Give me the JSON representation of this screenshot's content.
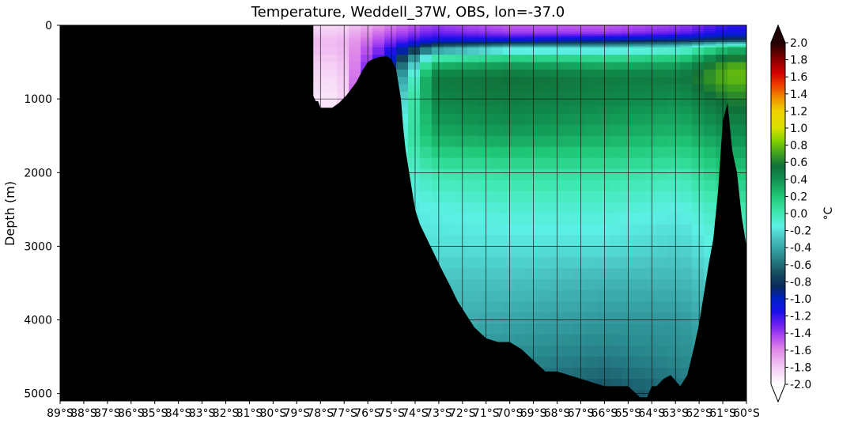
{
  "chart_data": {
    "type": "heatmap",
    "title": "Temperature, Weddell_37W, OBS, lon=-37.0",
    "xlabel": "",
    "ylabel": "Depth (m)",
    "x_range": [
      -89,
      -60
    ],
    "y_range": [
      0,
      5100
    ],
    "y_inverted": true,
    "x_ticks": [
      -89,
      -88,
      -87,
      -86,
      -85,
      -84,
      -83,
      -82,
      -81,
      -80,
      -79,
      -78,
      -77,
      -76,
      -75,
      -74,
      -73,
      -72,
      -71,
      -70,
      -69,
      -68,
      -67,
      -66,
      -65,
      -64,
      -63,
      -62,
      -61,
      -60
    ],
    "x_tick_labels": [
      "89°S",
      "88°S",
      "87°S",
      "86°S",
      "85°S",
      "84°S",
      "83°S",
      "82°S",
      "81°S",
      "80°S",
      "79°S",
      "78°S",
      "77°S",
      "76°S",
      "75°S",
      "74°S",
      "73°S",
      "72°S",
      "71°S",
      "70°S",
      "69°S",
      "68°S",
      "67°S",
      "66°S",
      "65°S",
      "64°S",
      "63°S",
      "62°S",
      "61°S",
      "60°S"
    ],
    "y_ticks": [
      0,
      1000,
      2000,
      3000,
      4000,
      5000
    ],
    "y_tick_labels": [
      "0",
      "1000",
      "2000",
      "3000",
      "4000",
      "5000"
    ],
    "grid": true,
    "colorbar": {
      "label": "°C",
      "vmin": -2.0,
      "vmax": 2.0,
      "extend": "both",
      "ticks": [
        2.0,
        1.8,
        1.6,
        1.4,
        1.2,
        1.0,
        0.8,
        0.6,
        0.4,
        0.2,
        0.0,
        -0.2,
        -0.4,
        -0.6,
        -0.8,
        -1.0,
        -1.2,
        -1.4,
        -1.6,
        -1.8,
        -2.0
      ],
      "tick_labels": [
        "2.0",
        "1.8",
        "1.6",
        "1.4",
        "1.2",
        "1.0",
        "0.8",
        "0.6",
        "0.4",
        "0.2",
        "0.0",
        "-0.2",
        "-0.4",
        "-0.6",
        "-0.8",
        "-1.0",
        "-1.2",
        "-1.4",
        "-1.6",
        "-1.8",
        "-2.0"
      ],
      "colors": [
        {
          "v": -2.0,
          "c": "#ffffff"
        },
        {
          "v": -1.8,
          "c": "#f4ccf4"
        },
        {
          "v": -1.6,
          "c": "#e08ae8"
        },
        {
          "v": -1.45,
          "c": "#b54cf0"
        },
        {
          "v": -1.3,
          "c": "#6a1ff0"
        },
        {
          "v": -1.15,
          "c": "#1a10e8"
        },
        {
          "v": -1.0,
          "c": "#0020c8"
        },
        {
          "v": -0.85,
          "c": "#0a2a5a"
        },
        {
          "v": -0.7,
          "c": "#154d60"
        },
        {
          "v": -0.5,
          "c": "#2a8c90"
        },
        {
          "v": -0.3,
          "c": "#48c0c0"
        },
        {
          "v": -0.15,
          "c": "#5cf0e4"
        },
        {
          "v": 0.0,
          "c": "#40e8b0"
        },
        {
          "v": 0.2,
          "c": "#20c878"
        },
        {
          "v": 0.4,
          "c": "#109050"
        },
        {
          "v": 0.55,
          "c": "#10703a"
        },
        {
          "v": 0.7,
          "c": "#40a020"
        },
        {
          "v": 0.85,
          "c": "#80d000"
        },
        {
          "v": 1.0,
          "c": "#d8e000"
        },
        {
          "v": 1.2,
          "c": "#f0d000"
        },
        {
          "v": 1.35,
          "c": "#f09000"
        },
        {
          "v": 1.5,
          "c": "#f04000"
        },
        {
          "v": 1.65,
          "c": "#d00000"
        },
        {
          "v": 1.8,
          "c": "#8a0000"
        },
        {
          "v": 2.0,
          "c": "#200000"
        }
      ]
    },
    "bathymetry": {
      "comment": "bottom depth (m) by latitude; shelf ice/land masked black",
      "lat": [
        -89,
        -78.3,
        -78.2,
        -78.1,
        -78.0,
        -77.9,
        -77.5,
        -77.2,
        -76.9,
        -76.5,
        -76.2,
        -76.0,
        -75.8,
        -75.5,
        -75.2,
        -75.0,
        -74.8,
        -74.6,
        -74.5,
        -74.4,
        -74.3,
        -74.2,
        -74.1,
        -74.0,
        -73.8,
        -73.5,
        -73.2,
        -72.9,
        -72.5,
        -72.2,
        -71.9,
        -71.5,
        -71.0,
        -70.5,
        -70.0,
        -69.5,
        -69.0,
        -68.5,
        -68.0,
        -67.0,
        -66.0,
        -65.0,
        -64.5,
        -64.2,
        -64.0,
        -63.8,
        -63.5,
        -63.2,
        -62.8,
        -62.5,
        -62.2,
        -62.0,
        -61.8,
        -61.6,
        -61.4,
        -61.2,
        -61.0,
        -60.8,
        -60.6,
        -60.4,
        -60.2,
        -60.0
      ],
      "depth": [
        0,
        960,
        1030,
        1030,
        1120,
        1120,
        1120,
        1050,
        950,
        780,
        600,
        500,
        460,
        430,
        420,
        460,
        600,
        1000,
        1400,
        1700,
        1900,
        2100,
        2300,
        2500,
        2700,
        2900,
        3100,
        3300,
        3550,
        3750,
        3900,
        4100,
        4250,
        4300,
        4300,
        4400,
        4550,
        4700,
        4700,
        4800,
        4900,
        4900,
        5050,
        5050,
        4900,
        4900,
        4800,
        4750,
        4900,
        4750,
        4350,
        4050,
        3650,
        3250,
        2900,
        2250,
        1300,
        1050,
        1700,
        2000,
        2600,
        3000
      ],
      "mask_top_end_lat": -78.3
    },
    "temperature_sections": {
      "comment": "approximate observed temperature (°C) at depth levels, by latitude band",
      "depths": [
        0,
        100,
        200,
        300,
        500,
        700,
        1000,
        1500,
        2000,
        2500,
        3000,
        3500,
        4000,
        4500,
        5000
      ],
      "rows": [
        {
          "lat_from": -78.3,
          "lat_to": -76.0,
          "temps": [
            -1.85,
            -1.8,
            -1.75,
            -1.75,
            -1.8,
            -1.85,
            -1.9,
            -1.9,
            -1.9,
            -1.9,
            -1.9,
            -1.9,
            -1.9,
            -1.9,
            -1.9
          ]
        },
        {
          "lat_from": -76.0,
          "lat_to": -74.5,
          "temps": [
            -1.6,
            -1.5,
            -1.4,
            -1.3,
            -1.1,
            -0.9,
            -0.6,
            -0.3,
            -0.2,
            -0.2,
            -0.2,
            -0.3,
            -0.4,
            -0.5,
            -0.6
          ]
        },
        {
          "lat_from": -74.5,
          "lat_to": -72.0,
          "temps": [
            -1.4,
            -1.3,
            -1.1,
            -0.6,
            0.2,
            0.5,
            0.45,
            0.3,
            0.0,
            -0.15,
            -0.2,
            -0.3,
            -0.35,
            -0.45,
            -0.55
          ]
        },
        {
          "lat_from": -72.0,
          "lat_to": -68.0,
          "temps": [
            -1.5,
            -1.4,
            -1.1,
            -0.3,
            0.3,
            0.55,
            0.5,
            0.35,
            0.05,
            -0.1,
            -0.2,
            -0.3,
            -0.4,
            -0.5,
            -0.6
          ]
        },
        {
          "lat_from": -68.0,
          "lat_to": -64.0,
          "temps": [
            -1.5,
            -1.4,
            -1.0,
            -0.3,
            0.25,
            0.5,
            0.45,
            0.3,
            0.05,
            -0.1,
            -0.2,
            -0.35,
            -0.45,
            -0.55,
            -0.7
          ]
        },
        {
          "lat_from": -64.0,
          "lat_to": -61.5,
          "temps": [
            -1.4,
            -1.3,
            -0.9,
            -0.2,
            0.3,
            0.5,
            0.4,
            0.25,
            0.0,
            -0.15,
            -0.25,
            -0.35,
            -0.45,
            -0.5,
            -0.6
          ]
        },
        {
          "lat_from": -61.5,
          "lat_to": -60.0,
          "temps": [
            -1.2,
            -1.1,
            -0.8,
            0.2,
            0.7,
            0.8,
            0.6,
            0.4,
            0.2,
            0.0,
            -0.1,
            -0.2,
            -0.3,
            -0.4,
            -0.5
          ]
        }
      ]
    }
  }
}
